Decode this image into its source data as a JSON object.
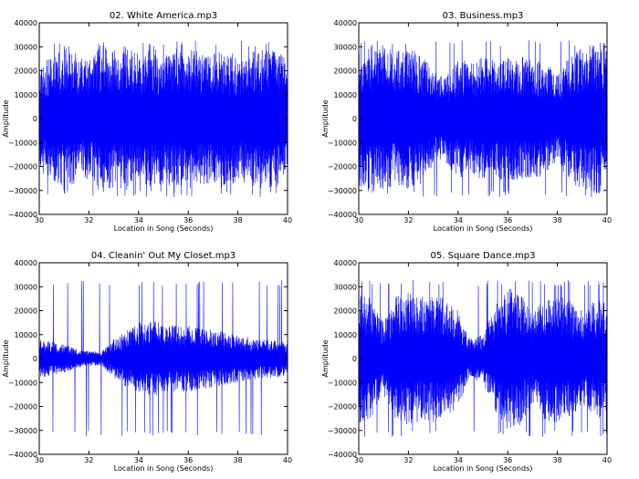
{
  "chart_data": [
    {
      "type": "line",
      "title": "02. White America.mp3",
      "xlabel": "Location in Song (Seconds)",
      "ylabel": "Amplitude",
      "xlim": [
        30,
        40
      ],
      "ylim": [
        -40000,
        40000
      ],
      "xticks": [
        30,
        32,
        34,
        36,
        38,
        40
      ],
      "yticks": [
        -40000,
        -30000,
        -20000,
        -10000,
        0,
        10000,
        20000,
        30000,
        40000
      ],
      "xtick_labels": [
        "30",
        "32",
        "34",
        "36",
        "38",
        "40"
      ],
      "ytick_labels": [
        "−40000",
        "−30000",
        "−20000",
        "−10000",
        "0",
        "10000",
        "20000",
        "30000",
        "40000"
      ],
      "color": "#0000ff",
      "grid": false,
      "series": [
        {
          "x": [
            30,
            30.5,
            31,
            31.5,
            32,
            32.5,
            33,
            33.5,
            34,
            34.5,
            35,
            35.5,
            36,
            36.5,
            37,
            37.5,
            38,
            38.5,
            39,
            39.5,
            40
          ],
          "values": [
            22000,
            26000,
            30000,
            27000,
            25000,
            31000,
            29000,
            30000,
            28000,
            30000,
            27000,
            29000,
            30000,
            28000,
            27000,
            30000,
            26000,
            28000,
            30000,
            29000,
            25000
          ]
        }
      ]
    },
    {
      "type": "line",
      "title": "03. Business.mp3",
      "xlabel": "Location in Song (Seconds)",
      "ylabel": "Amplitude",
      "xlim": [
        30,
        40
      ],
      "ylim": [
        -40000,
        40000
      ],
      "xticks": [
        30,
        32,
        34,
        36,
        38,
        40
      ],
      "yticks": [
        -40000,
        -30000,
        -20000,
        -10000,
        0,
        10000,
        20000,
        30000,
        40000
      ],
      "xtick_labels": [
        "30",
        "32",
        "34",
        "36",
        "38",
        "40"
      ],
      "ytick_labels": [
        "−40000",
        "−30000",
        "−20000",
        "−10000",
        "0",
        "10000",
        "20000",
        "30000",
        "40000"
      ],
      "color": "#0000ff",
      "grid": false,
      "series": [
        {
          "x": [
            30,
            30.5,
            31,
            31.5,
            32,
            32.5,
            33,
            33.5,
            34,
            34.5,
            35,
            35.5,
            36,
            36.5,
            37,
            37.5,
            38,
            38.5,
            39,
            39.5,
            40
          ],
          "values": [
            28000,
            31000,
            30000,
            29000,
            30000,
            28000,
            20000,
            18000,
            25000,
            24000,
            26000,
            25000,
            27000,
            26000,
            25000,
            24000,
            18000,
            27000,
            30000,
            31000,
            32000
          ]
        }
      ]
    },
    {
      "type": "line",
      "title": "04. Cleanin' Out My Closet.mp3",
      "xlabel": "Location in Song (Seconds)",
      "ylabel": "Amplitude",
      "xlim": [
        30,
        40
      ],
      "ylim": [
        -40000,
        40000
      ],
      "xticks": [
        30,
        32,
        34,
        36,
        38,
        40
      ],
      "yticks": [
        -40000,
        -30000,
        -20000,
        -10000,
        0,
        10000,
        20000,
        30000,
        40000
      ],
      "xtick_labels": [
        "30",
        "32",
        "34",
        "36",
        "38",
        "40"
      ],
      "ytick_labels": [
        "−40000",
        "−30000",
        "−20000",
        "−10000",
        "0",
        "10000",
        "20000",
        "30000",
        "40000"
      ],
      "color": "#0000ff",
      "grid": false,
      "series": [
        {
          "x": [
            30,
            30.5,
            31,
            31.5,
            32,
            32.5,
            33,
            33.5,
            34,
            34.5,
            35,
            35.5,
            36,
            36.5,
            37,
            37.5,
            38,
            38.5,
            39,
            39.5,
            40
          ],
          "values": [
            8000,
            7000,
            6000,
            4000,
            3000,
            3000,
            8000,
            12000,
            15000,
            16000,
            15000,
            14000,
            14000,
            13000,
            12000,
            11000,
            10000,
            9000,
            8000,
            8000,
            7000
          ]
        }
      ]
    },
    {
      "type": "line",
      "title": "05. Square Dance.mp3",
      "xlabel": "Location in Song (Seconds)",
      "ylabel": "Amplitude",
      "xlim": [
        30,
        40
      ],
      "ylim": [
        -40000,
        40000
      ],
      "xticks": [
        30,
        32,
        34,
        36,
        38,
        40
      ],
      "yticks": [
        -40000,
        -30000,
        -20000,
        -10000,
        0,
        10000,
        20000,
        30000,
        40000
      ],
      "xtick_labels": [
        "30",
        "32",
        "34",
        "36",
        "38",
        "40"
      ],
      "ytick_labels": [
        "−40000",
        "−30000",
        "−20000",
        "−10000",
        "0",
        "10000",
        "20000",
        "30000",
        "40000"
      ],
      "color": "#0000ff",
      "grid": false,
      "series": [
        {
          "x": [
            30,
            30.5,
            31,
            31.5,
            32,
            32.5,
            33,
            33.5,
            34,
            34.5,
            35,
            35.5,
            36,
            36.5,
            37,
            37.5,
            38,
            38.5,
            39,
            39.5,
            40
          ],
          "values": [
            27000,
            25000,
            16000,
            26000,
            28000,
            26000,
            27000,
            25000,
            20000,
            8000,
            10000,
            22000,
            30000,
            28000,
            18000,
            26000,
            27000,
            24000,
            20000,
            24000,
            26000
          ]
        }
      ]
    }
  ]
}
